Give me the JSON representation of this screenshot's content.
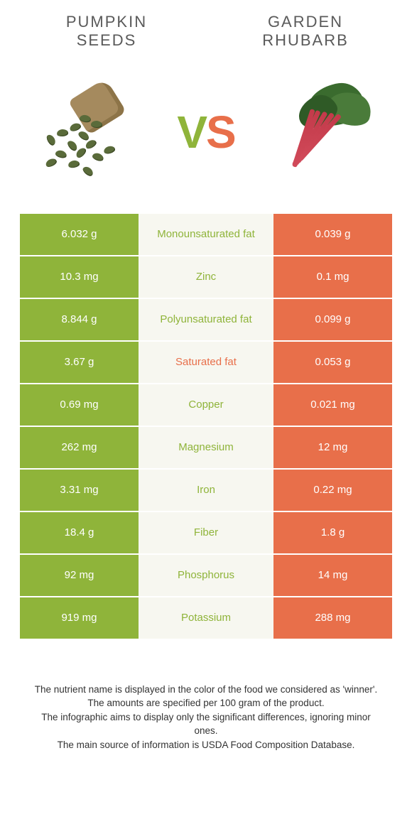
{
  "header": {
    "left_title_l1": "PUMPKIN",
    "left_title_l2": "SEEDS",
    "right_title_l1": "GARDEN",
    "right_title_l2": "RHUBARB"
  },
  "vs": {
    "v": "V",
    "s": "S"
  },
  "colors": {
    "left": "#8fb43a",
    "right": "#e86f4a",
    "mid_bg": "#f7f7f0",
    "header_text": "#5a5a5a"
  },
  "rows": [
    {
      "left": "6.032 g",
      "label": "Monounsaturated fat",
      "right": "0.039 g",
      "winner": "left"
    },
    {
      "left": "10.3 mg",
      "label": "Zinc",
      "right": "0.1 mg",
      "winner": "left"
    },
    {
      "left": "8.844 g",
      "label": "Polyunsaturated fat",
      "right": "0.099 g",
      "winner": "left"
    },
    {
      "left": "3.67 g",
      "label": "Saturated fat",
      "right": "0.053 g",
      "winner": "right"
    },
    {
      "left": "0.69 mg",
      "label": "Copper",
      "right": "0.021 mg",
      "winner": "left"
    },
    {
      "left": "262 mg",
      "label": "Magnesium",
      "right": "12 mg",
      "winner": "left"
    },
    {
      "left": "3.31 mg",
      "label": "Iron",
      "right": "0.22 mg",
      "winner": "left"
    },
    {
      "left": "18.4 g",
      "label": "Fiber",
      "right": "1.8 g",
      "winner": "left"
    },
    {
      "left": "92 mg",
      "label": "Phosphorus",
      "right": "14 mg",
      "winner": "left"
    },
    {
      "left": "919 mg",
      "label": "Potassium",
      "right": "288 mg",
      "winner": "left"
    }
  ],
  "footer": {
    "l1": "The nutrient name is displayed in the color of the food we considered as 'winner'.",
    "l2": "The amounts are specified per 100 gram of the product.",
    "l3": "The infographic aims to display only the significant differences, ignoring minor ones.",
    "l4": "The main source of information is USDA Food Composition Database."
  }
}
